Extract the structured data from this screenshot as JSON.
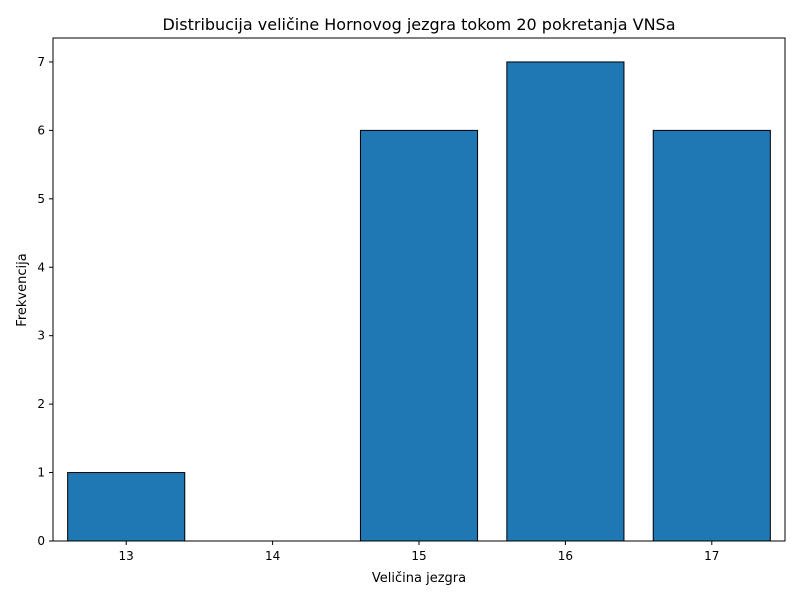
{
  "chart_data": {
    "type": "bar",
    "title": "Distribucija veličine Hornovog jezgra tokom 20 pokretanja VNSa",
    "xlabel": "Veličina jezgra",
    "ylabel": "Frekvencija",
    "categories": [
      "13",
      "14",
      "15",
      "16",
      "17"
    ],
    "x": [
      13,
      14,
      15,
      16,
      17
    ],
    "values": [
      1,
      0,
      6,
      7,
      6
    ],
    "xlim": [
      12.5,
      17.5
    ],
    "ylim": [
      0,
      7.35
    ],
    "yticks": [
      0,
      1,
      2,
      3,
      4,
      5,
      6,
      7
    ],
    "grid": false,
    "bar_color": "#1f77b4",
    "edge_color": "#000000"
  }
}
